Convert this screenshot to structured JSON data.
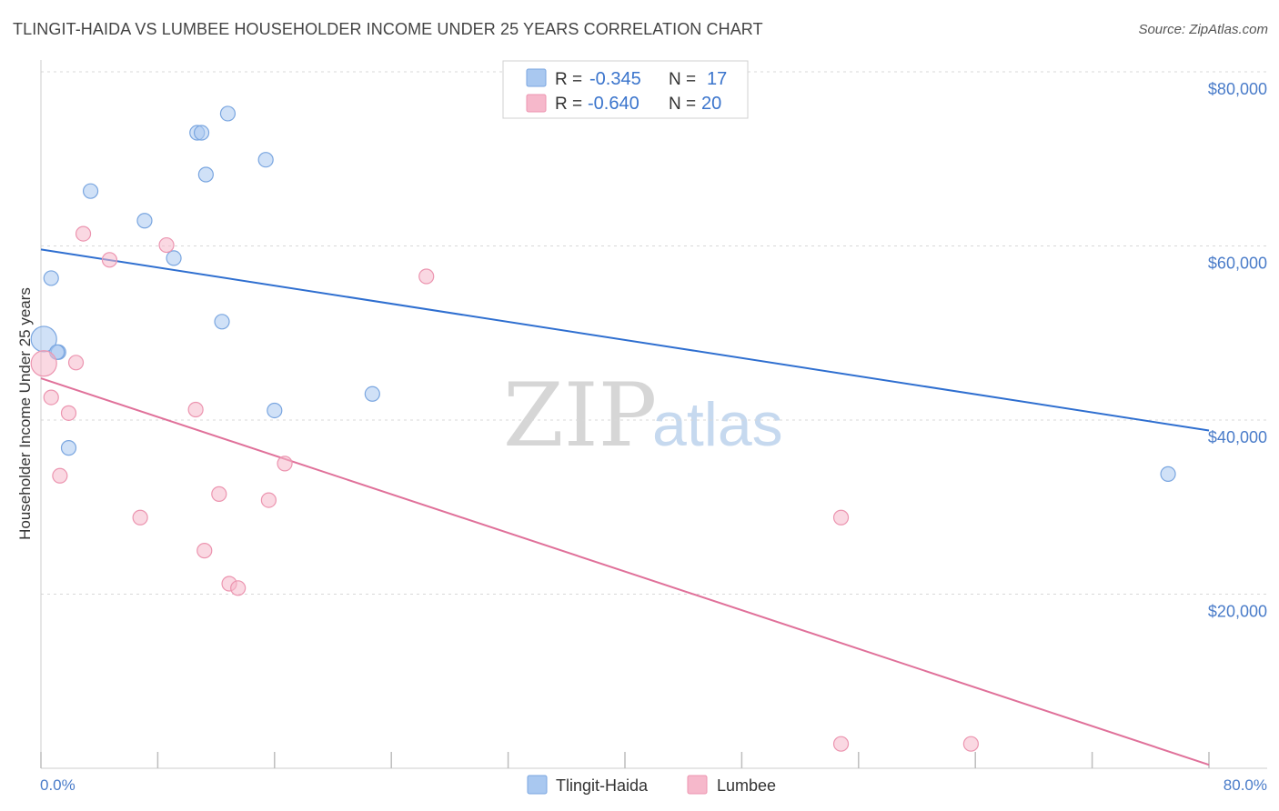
{
  "header": {
    "title": "TLINGIT-HAIDA VS LUMBEE HOUSEHOLDER INCOME UNDER 25 YEARS CORRELATION CHART",
    "source": "Source: ZipAtlas.com"
  },
  "watermark": {
    "zip": "ZIP",
    "atlas": "atlas"
  },
  "colors": {
    "blue_fill": "#a9c8f0",
    "blue_stroke": "#7aa6e0",
    "blue_line": "#2f6fd0",
    "pink_fill": "#f6b8cb",
    "pink_stroke": "#ec95b0",
    "pink_line": "#e0719a",
    "tick_label": "#4a7cc9",
    "grid": "#d8d8d8"
  },
  "legend": {
    "rows": [
      {
        "r_label": "R = ",
        "r_value": "-0.345",
        "n_label": "N = ",
        "n_value": "17",
        "color": "blue"
      },
      {
        "r_label": "R = ",
        "r_value": "-0.640",
        "n_label": "N = ",
        "n_value": "20",
        "color": "pink"
      }
    ]
  },
  "chart_data": {
    "type": "scatter",
    "ylabel": "Householder Income Under 25 years",
    "xlim": [
      0,
      80
    ],
    "ylim": [
      0,
      80000
    ],
    "x_tick_labels": [
      "0.0%",
      "80.0%"
    ],
    "y_ticks": [
      {
        "value": 20000,
        "label": "$20,000"
      },
      {
        "value": 40000,
        "label": "$40,000"
      },
      {
        "value": 60000,
        "label": "$60,000"
      },
      {
        "value": 80000,
        "label": "$80,000"
      }
    ],
    "grid": true,
    "legend_position": "bottom-center",
    "series": [
      {
        "name": "Tlingit-Haida",
        "color": "blue",
        "points": [
          [
            0.2,
            49300
          ],
          [
            0.7,
            56300
          ],
          [
            1.2,
            47800
          ],
          [
            1.9,
            36800
          ],
          [
            3.4,
            66300
          ],
          [
            7.1,
            62900
          ],
          [
            9.1,
            58600
          ],
          [
            10.7,
            73000
          ],
          [
            11.0,
            73000
          ],
          [
            11.3,
            68200
          ],
          [
            12.4,
            51300
          ],
          [
            12.8,
            75200
          ],
          [
            15.4,
            69900
          ],
          [
            16.0,
            41100
          ],
          [
            22.7,
            43000
          ],
          [
            1.1,
            47800
          ],
          [
            77.2,
            33800
          ]
        ],
        "trend": {
          "x": [
            0,
            80
          ],
          "y": [
            59600,
            38800
          ]
        }
      },
      {
        "name": "Lumbee",
        "color": "pink",
        "points": [
          [
            0.2,
            46500
          ],
          [
            0.7,
            42600
          ],
          [
            1.3,
            33600
          ],
          [
            1.9,
            40800
          ],
          [
            2.4,
            46600
          ],
          [
            2.9,
            61400
          ],
          [
            4.7,
            58400
          ],
          [
            6.8,
            28800
          ],
          [
            8.6,
            60100
          ],
          [
            10.6,
            41200
          ],
          [
            11.2,
            25000
          ],
          [
            12.2,
            31500
          ],
          [
            12.9,
            21200
          ],
          [
            13.5,
            20700
          ],
          [
            15.6,
            30800
          ],
          [
            16.7,
            35000
          ],
          [
            26.4,
            56500
          ],
          [
            54.8,
            28800
          ],
          [
            54.8,
            2800
          ],
          [
            63.7,
            2800
          ]
        ],
        "trend": {
          "x": [
            0,
            80
          ],
          "y": [
            44800,
            400
          ]
        }
      }
    ]
  }
}
